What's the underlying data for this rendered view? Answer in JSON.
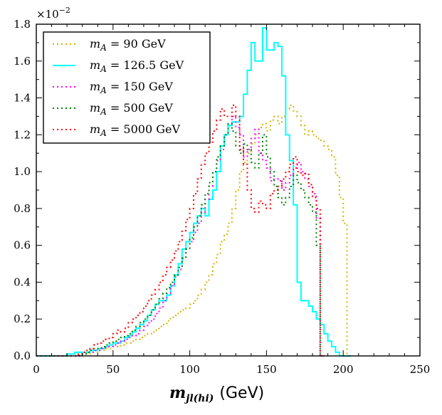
{
  "chart_data": {
    "type": "line",
    "style": "step-histogram",
    "xlabel": "m_jl(hi) (GeV)",
    "xlabel_parts": {
      "symbol": "m",
      "subscript": "jl(hi)",
      "unit": "(GeV)"
    },
    "ylabel": "",
    "y_exponent_label": "×10",
    "y_exponent_power": "−2",
    "xlim": [
      0,
      250
    ],
    "ylim": [
      0,
      1.8
    ],
    "x_ticks": [
      0,
      50,
      100,
      150,
      200,
      250
    ],
    "x_tick_labels": [
      "0",
      "50",
      "100",
      "150",
      "200",
      "250"
    ],
    "y_ticks": [
      0,
      0.2,
      0.4,
      0.6,
      0.8,
      1.0,
      1.2,
      1.4,
      1.6,
      1.8
    ],
    "y_tick_labels": [
      "0.0",
      "0.2",
      "0.4",
      "0.6",
      "0.8",
      "1.0",
      "1.2",
      "1.4",
      "1.6",
      "1.8"
    ],
    "legend_position": "top-left",
    "bin_start": 0,
    "bin_width": 2.5,
    "series": [
      {
        "name": "m_A = 90  GeV",
        "label_lhs": "m",
        "label_sub": "A",
        "label_value": " = 90  GeV",
        "color": "#d4b400",
        "dash": "dotted",
        "values": [
          0,
          0,
          0,
          0,
          0,
          0,
          0,
          0,
          0,
          0,
          0,
          0,
          0.01,
          0.01,
          0.02,
          0.02,
          0.03,
          0.03,
          0.04,
          0.04,
          0.05,
          0.05,
          0.06,
          0.07,
          0.07,
          0.08,
          0.09,
          0.1,
          0.11,
          0.12,
          0.13,
          0.14,
          0.16,
          0.17,
          0.19,
          0.21,
          0.22,
          0.24,
          0.25,
          0.26,
          0.28,
          0.3,
          0.33,
          0.36,
          0.4,
          0.44,
          0.5,
          0.55,
          0.62,
          0.66,
          0.72,
          0.8,
          0.9,
          1.0,
          1.05,
          1.1,
          1.15,
          1.2,
          1.24,
          1.26,
          1.22,
          1.28,
          1.3,
          1.26,
          1.3,
          1.34,
          1.36,
          1.33,
          1.3,
          1.25,
          1.2,
          1.22,
          1.2,
          1.18,
          1.17,
          1.14,
          1.12,
          1.08,
          0.98,
          0.86,
          0.72,
          0
        ]
      },
      {
        "name": "m_A = 126.5  GeV",
        "label_lhs": "m",
        "label_sub": "A",
        "label_value": " = 126.5  GeV",
        "color": "#00ffff",
        "dash": "solid",
        "values": [
          0,
          0,
          0,
          0,
          0,
          0,
          0,
          0,
          0.01,
          0.01,
          0.02,
          0.02,
          0.02,
          0.02,
          0.03,
          0.03,
          0.04,
          0.04,
          0.05,
          0.06,
          0.07,
          0.07,
          0.08,
          0.1,
          0.11,
          0.13,
          0.15,
          0.17,
          0.19,
          0.22,
          0.25,
          0.28,
          0.3,
          0.3,
          0.33,
          0.38,
          0.44,
          0.5,
          0.58,
          0.62,
          0.67,
          0.72,
          0.76,
          0.8,
          0.76,
          0.85,
          0.9,
          1.0,
          1.14,
          1.2,
          1.25,
          1.27,
          1.27,
          1.3,
          1.42,
          1.55,
          1.7,
          1.6,
          1.6,
          1.78,
          1.66,
          1.66,
          1.7,
          1.68,
          1.52,
          1.2,
          1.06,
          0.82,
          0.4,
          0.3,
          0.3,
          0.27,
          0.24,
          0.2,
          0.17,
          0.12,
          0.08,
          0.05,
          0.02,
          0,
          0,
          0
        ]
      },
      {
        "name": "m_A = 150  GeV",
        "label_lhs": "m",
        "label_sub": "A",
        "label_value": " = 150  GeV",
        "color": "#ff00ff",
        "dash": "dotted",
        "values": [
          0,
          0,
          0,
          0,
          0,
          0,
          0,
          0,
          0,
          0,
          0,
          0.01,
          0.01,
          0.02,
          0.02,
          0.03,
          0.03,
          0.04,
          0.05,
          0.05,
          0.06,
          0.07,
          0.08,
          0.09,
          0.1,
          0.11,
          0.12,
          0.14,
          0.16,
          0.18,
          0.2,
          0.23,
          0.26,
          0.3,
          0.34,
          0.38,
          0.43,
          0.47,
          0.53,
          0.58,
          0.62,
          0.67,
          0.72,
          0.78,
          0.85,
          0.92,
          1.0,
          1.06,
          1.12,
          1.2,
          1.26,
          1.3,
          1.24,
          1.2,
          1.08,
          1.12,
          1.18,
          1.23,
          1.1,
          1.06,
          1.02,
          0.95,
          0.96,
          0.95,
          0.9,
          0.94,
          0.98,
          1.02,
          1.05,
          1.0,
          0.96,
          0.92,
          0.88,
          0.75,
          0
        ]
      },
      {
        "name": "m_A = 500  GeV",
        "label_lhs": "m",
        "label_sub": "A",
        "label_value": " = 500  GeV",
        "color": "#008000",
        "dash": "dotted",
        "values": [
          0,
          0,
          0,
          0,
          0,
          0,
          0,
          0,
          0,
          0,
          0,
          0,
          0.01,
          0.02,
          0.03,
          0.04,
          0.04,
          0.05,
          0.06,
          0.07,
          0.08,
          0.09,
          0.1,
          0.11,
          0.12,
          0.14,
          0.16,
          0.18,
          0.2,
          0.22,
          0.25,
          0.28,
          0.31,
          0.34,
          0.37,
          0.4,
          0.44,
          0.48,
          0.53,
          0.58,
          0.64,
          0.7,
          0.76,
          0.82,
          0.88,
          0.94,
          1.0,
          1.08,
          1.14,
          1.2,
          1.26,
          1.22,
          1.14,
          1.1,
          1.15,
          1.12,
          1.05,
          1.02,
          1.1,
          1.2,
          1.08,
          1.0,
          0.92,
          0.86,
          0.82,
          0.86,
          0.92,
          0.98,
          0.94,
          0.9,
          0.86,
          0.82,
          0.78,
          0.6,
          0
        ]
      },
      {
        "name": "m_A = 5000  GeV",
        "label_lhs": "m",
        "label_sub": "A",
        "label_value": " = 5000  GeV",
        "color": "#ff0000",
        "dash": "dotted",
        "values": [
          0,
          0,
          0,
          0,
          0,
          0,
          0,
          0,
          0,
          0,
          0,
          0.01,
          0.02,
          0.03,
          0.04,
          0.06,
          0.07,
          0.08,
          0.09,
          0.1,
          0.12,
          0.14,
          0.13,
          0.15,
          0.18,
          0.2,
          0.22,
          0.24,
          0.27,
          0.3,
          0.33,
          0.36,
          0.4,
          0.44,
          0.48,
          0.52,
          0.57,
          0.62,
          0.68,
          0.74,
          0.8,
          0.88,
          0.96,
          1.04,
          1.1,
          1.16,
          1.22,
          1.28,
          1.34,
          1.3,
          1.3,
          1.36,
          1.3,
          1.12,
          1.04,
          0.9,
          0.8,
          0.78,
          0.84,
          0.82,
          0.8,
          0.88,
          0.9,
          0.92,
          0.96,
          1.0,
          1.04,
          1.08,
          1.0,
          0.98,
          0.99,
          0.93,
          0.86,
          0.8,
          0
        ]
      }
    ]
  }
}
